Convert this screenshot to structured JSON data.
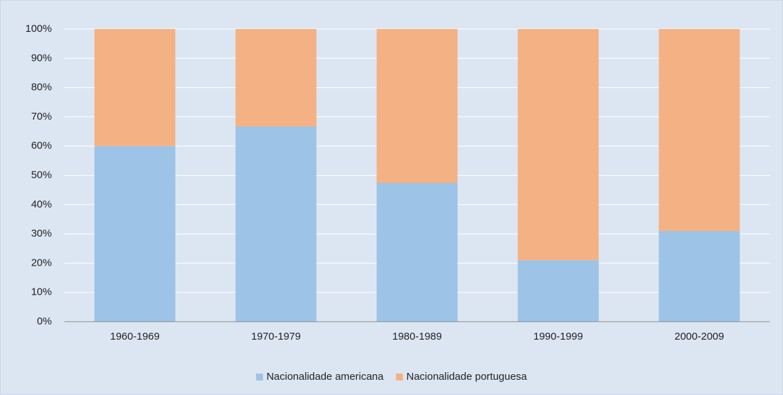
{
  "chart_data": {
    "type": "stacked_bar",
    "categories": [
      "1960-1969",
      "1970-1979",
      "1980-1989",
      "1990-1999",
      "2000-2009"
    ],
    "series": [
      {
        "name": "Nacionalidade americana",
        "color": "#9dc3e6",
        "values": [
          60,
          66.7,
          47.4,
          21,
          31
        ]
      },
      {
        "name": "Nacionalidade portuguesa",
        "color": "#f4b183",
        "values": [
          40,
          33.3,
          52.6,
          79,
          69
        ]
      }
    ],
    "ylim": [
      0,
      100
    ],
    "yticks": [
      {
        "value": 0,
        "label": "0%"
      },
      {
        "value": 10,
        "label": "10%"
      },
      {
        "value": 20,
        "label": "20%"
      },
      {
        "value": 30,
        "label": "30%"
      },
      {
        "value": 40,
        "label": "40%"
      },
      {
        "value": 50,
        "label": "50%"
      },
      {
        "value": 60,
        "label": "60%"
      },
      {
        "value": 70,
        "label": "70%"
      },
      {
        "value": 80,
        "label": "80%"
      },
      {
        "value": 90,
        "label": "90%"
      },
      {
        "value": 100,
        "label": "100%"
      }
    ],
    "grid": true,
    "legend": "bottom"
  }
}
